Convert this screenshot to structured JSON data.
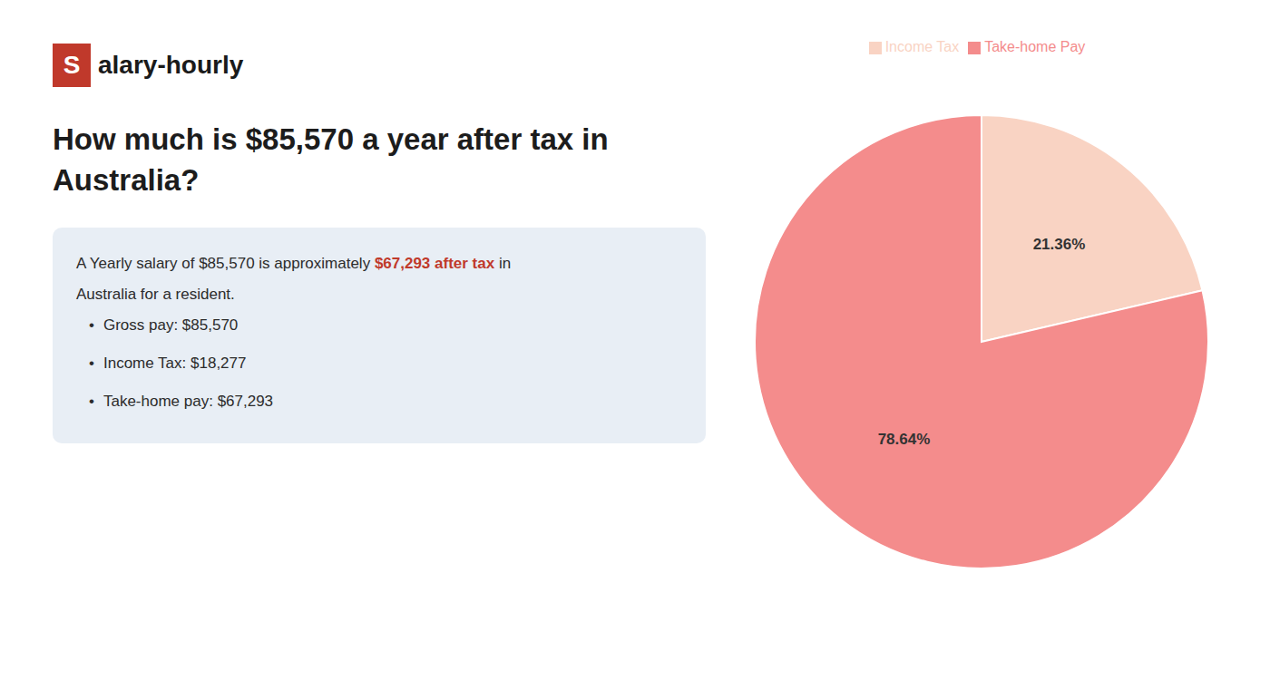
{
  "chart_data": {
    "type": "pie",
    "title": [
      "How much is $85,570 a year after tax in",
      "Australia?"
    ],
    "categories": [
      "Income Tax",
      "Take-home Pay"
    ],
    "values": [
      21.36,
      78.64
    ],
    "value_labels": [
      "21.36%",
      "78.64%"
    ],
    "data_labels": true,
    "colors": [
      "#f9d3c3",
      "#f48c8c"
    ],
    "legend": "top",
    "annotations": [
      {
        "style": "logo",
        "segments": [
          {
            "text": "S",
            "color": "#c0392b"
          },
          {
            "text": "alary-hourly"
          }
        ]
      },
      {
        "style": "text",
        "segments": [
          {
            "text": "A Yearly salary of $85,570 is approximately "
          },
          {
            "text": "$67,293 after tax",
            "color": "#c0392b"
          },
          {
            "text": " in"
          }
        ]
      },
      {
        "style": "text",
        "segments": [
          {
            "text": "Australia for a resident."
          }
        ]
      },
      {
        "style": "bullet",
        "segments": [
          {
            "text": "•"
          },
          {
            "text": "Gross pay: $85,570"
          }
        ]
      },
      {
        "style": "bullet",
        "segments": [
          {
            "text": "•"
          },
          {
            "text": "Income Tax: $18,277"
          }
        ]
      },
      {
        "style": "bullet",
        "segments": [
          {
            "text": "•"
          },
          {
            "text": "Take-home pay: $67,293"
          }
        ]
      }
    ]
  }
}
